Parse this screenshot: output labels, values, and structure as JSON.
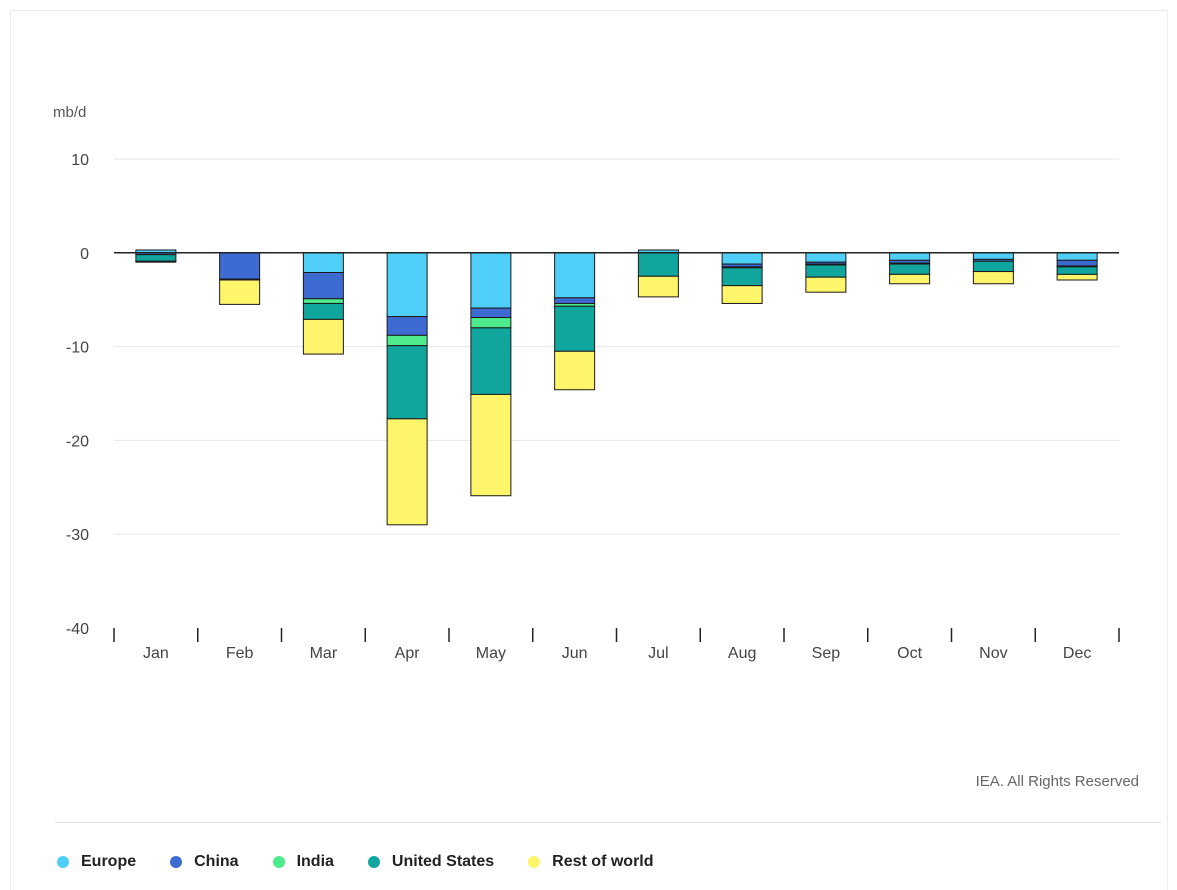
{
  "chart_data": {
    "type": "bar",
    "stacked": true,
    "ylabel": "mb/d",
    "credit": "IEA. All Rights Reserved",
    "categories": [
      "Jan",
      "Feb",
      "Mar",
      "Apr",
      "May",
      "Jun",
      "Jul",
      "Aug",
      "Sep",
      "Oct",
      "Nov",
      "Dec"
    ],
    "ylim": [
      -40,
      10
    ],
    "yticks": [
      10,
      0,
      -10,
      -20,
      -30,
      -40
    ],
    "ytick_labels": [
      "10",
      "0",
      "-10",
      "-20",
      "-30",
      "-40"
    ],
    "grid": true,
    "legend_position": "bottom-left",
    "series": [
      {
        "name": "Europe",
        "color": "#4fcff7",
        "values": [
          0.3,
          0,
          -2.1,
          -6.8,
          -5.9,
          -4.8,
          0.3,
          -1.2,
          -1.0,
          -0.8,
          -0.7,
          -0.8
        ]
      },
      {
        "name": "China",
        "color": "#3e6bd1",
        "values": [
          -0.2,
          -2.8,
          -2.8,
          -2.0,
          -1.0,
          -0.6,
          0,
          -0.3,
          -0.2,
          -0.3,
          -0.2,
          -0.6
        ]
      },
      {
        "name": "India",
        "color": "#4deb8c",
        "values": [
          0,
          -0.1,
          -0.5,
          -1.1,
          -1.1,
          -0.3,
          0,
          -0.1,
          -0.1,
          -0.1,
          0,
          -0.1
        ]
      },
      {
        "name": "United States",
        "color": "#10a69e",
        "values": [
          -0.7,
          0,
          -1.7,
          -7.8,
          -7.1,
          -4.8,
          -2.5,
          -1.9,
          -1.3,
          -1.1,
          -1.1,
          -0.8
        ]
      },
      {
        "name": "Rest of world",
        "color": "#fff56a",
        "values": [
          -0.1,
          -2.6,
          -3.7,
          -11.3,
          -10.8,
          -4.1,
          -2.2,
          -1.9,
          -1.6,
          -1.0,
          -1.3,
          -0.6
        ]
      }
    ]
  }
}
